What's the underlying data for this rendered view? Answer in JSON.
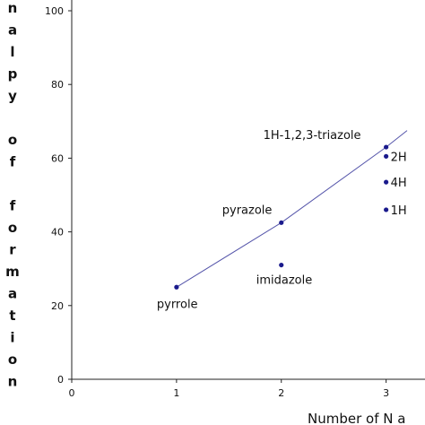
{
  "chart_data": {
    "type": "scatter",
    "xlabel": "Number of N a",
    "ylabel_letters": [
      "n",
      "a",
      "l",
      "p",
      "y",
      "",
      "o",
      "f",
      "",
      "f",
      "o",
      "r",
      "m",
      "a",
      "t",
      "i",
      "o",
      "n"
    ],
    "xlim": [
      0,
      3.2
    ],
    "ylim": [
      0,
      100
    ],
    "x_ticks": [
      "0",
      "1",
      "2",
      "3"
    ],
    "y_ticks": [
      "0",
      "20",
      "40",
      "60",
      "80",
      "100"
    ],
    "grid": false,
    "series": [
      {
        "points": [
          {
            "label": "pyrrole",
            "x": 1,
            "y": 25
          },
          {
            "label": "pyrazole",
            "x": 2,
            "y": 42.5
          },
          {
            "label": "imidazole",
            "x": 2,
            "y": 31
          },
          {
            "label": "1H-1,2,3-triazole",
            "x": 3,
            "y": 63
          },
          {
            "label": "2H",
            "x": 3,
            "y": 60.5
          },
          {
            "label": "4H",
            "x": 3,
            "y": 53.5
          },
          {
            "label": "1H",
            "x": 3,
            "y": 46
          }
        ]
      }
    ],
    "trend_line": [
      {
        "x": 1,
        "y": 25
      },
      {
        "x": 2,
        "y": 42.5
      },
      {
        "x": 3,
        "y": 63
      },
      {
        "x": 3.2,
        "y": 67.5
      }
    ],
    "colors": {
      "marker": "#1a1a8c",
      "line": "#5555aa",
      "axis": "#222222"
    }
  }
}
